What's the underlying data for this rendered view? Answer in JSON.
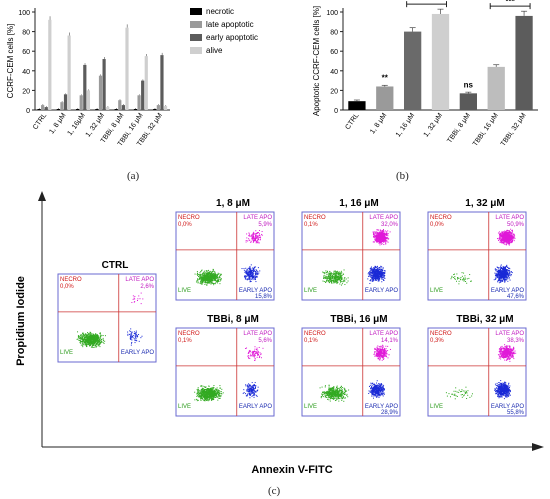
{
  "colors": {
    "necrotic": "#000000",
    "late_apoptotic": "#9a9a9a",
    "early_apoptotic": "#5c5c5c",
    "alive": "#cfcfcf",
    "live_dots": "#33aa22",
    "early_dots": "#1a2ad6",
    "late_dots": "#e01ad8",
    "quadrant_line": "#cc3333",
    "frame": "#6a6ad0"
  },
  "panel_labels": {
    "a": "(a)",
    "b": "(b)",
    "c": "(c)"
  },
  "chart_data": [
    {
      "type": "bar",
      "ylabel": "CCRF-CEM cells [%]",
      "ylim": [
        0,
        100
      ],
      "yticks": [
        "0",
        "20",
        "40",
        "60",
        "80",
        "100"
      ],
      "categories": [
        "CTRL",
        "1, 8 μM",
        "1, 16μM",
        "1, 32 μM",
        "TBBi, 8 μM",
        "TBBi, 16 μM",
        "TBBi, 32 μM"
      ],
      "legend_position": "right",
      "series": [
        {
          "name": "necrotic",
          "values": [
            1,
            1,
            1,
            1,
            1,
            1,
            1
          ]
        },
        {
          "name": "late apoptotic",
          "values": [
            5,
            8,
            15,
            35,
            10,
            15,
            5
          ]
        },
        {
          "name": "early apoptotic",
          "values": [
            3,
            16,
            46,
            52,
            5,
            30,
            56
          ]
        },
        {
          "name": "alive",
          "values": [
            92,
            76,
            20,
            3,
            84,
            55,
            4
          ]
        }
      ]
    },
    {
      "type": "bar",
      "ylabel": "Apoptotic CCRF-CEM cells [%]",
      "ylim": [
        0,
        100
      ],
      "yticks": [
        "0",
        "20",
        "40",
        "60",
        "80",
        "100"
      ],
      "categories": [
        "CTRL",
        "1, 8 μM",
        "1, 16 μM",
        "1, 32 μM",
        "TBBi, 8 μM",
        "TBBi, 16 μM",
        "TBBi, 32 μM"
      ],
      "values": [
        9,
        24,
        80,
        98,
        17,
        44,
        96
      ],
      "significance": [
        {
          "category": "1, 8 μM",
          "label": "**"
        },
        {
          "category": "TBBi, 8 μM",
          "label": "ns"
        },
        {
          "from": "1, 16 μM",
          "to": "1, 32 μM",
          "label": "***"
        },
        {
          "from": "TBBi, 16 μM",
          "to": "TBBi, 32 μM",
          "label": "***"
        }
      ]
    },
    {
      "type": "scatter",
      "xlabel": "Annexin V-FITC",
      "ylabel": "Propidium Iodide",
      "quadrant_labels": [
        "NECRO",
        "LATE APO",
        "LIVE",
        "EARLY APO"
      ],
      "panels": [
        {
          "title": "CTRL",
          "necro": "0,0%",
          "late": "2,6%",
          "live": "",
          "early": "",
          "dots": {
            "live": 700,
            "early": 60,
            "late": 15
          }
        },
        {
          "title": "1, 8 μM",
          "necro": "0,0%",
          "late": "5,9%",
          "live": "",
          "early": "15,8%",
          "dots": {
            "live": 600,
            "early": 220,
            "late": 120
          }
        },
        {
          "title": "1, 16 μM",
          "necro": "0,1%",
          "late": "32,0%",
          "live": "",
          "early": "",
          "dots": {
            "live": 320,
            "early": 500,
            "late": 500
          }
        },
        {
          "title": "1, 32 μM",
          "necro": "0,0%",
          "late": "50,9%",
          "live": "",
          "early": "47,6%",
          "dots": {
            "live": 40,
            "early": 500,
            "late": 650
          }
        },
        {
          "title": "TBBi, 8 μM",
          "necro": "0,1%",
          "late": "5,6%",
          "live": "",
          "early": "",
          "dots": {
            "live": 700,
            "early": 150,
            "late": 80
          }
        },
        {
          "title": "TBBi, 16 μM",
          "necro": "0,1%",
          "late": "14,1%",
          "live": "",
          "early": "28,9%",
          "dots": {
            "live": 450,
            "early": 350,
            "late": 250
          }
        },
        {
          "title": "TBBi, 32 μM",
          "necro": "0,3%",
          "late": "38,3%",
          "live": "",
          "early": "55,8%",
          "dots": {
            "live": 40,
            "early": 500,
            "late": 450
          }
        }
      ]
    }
  ]
}
